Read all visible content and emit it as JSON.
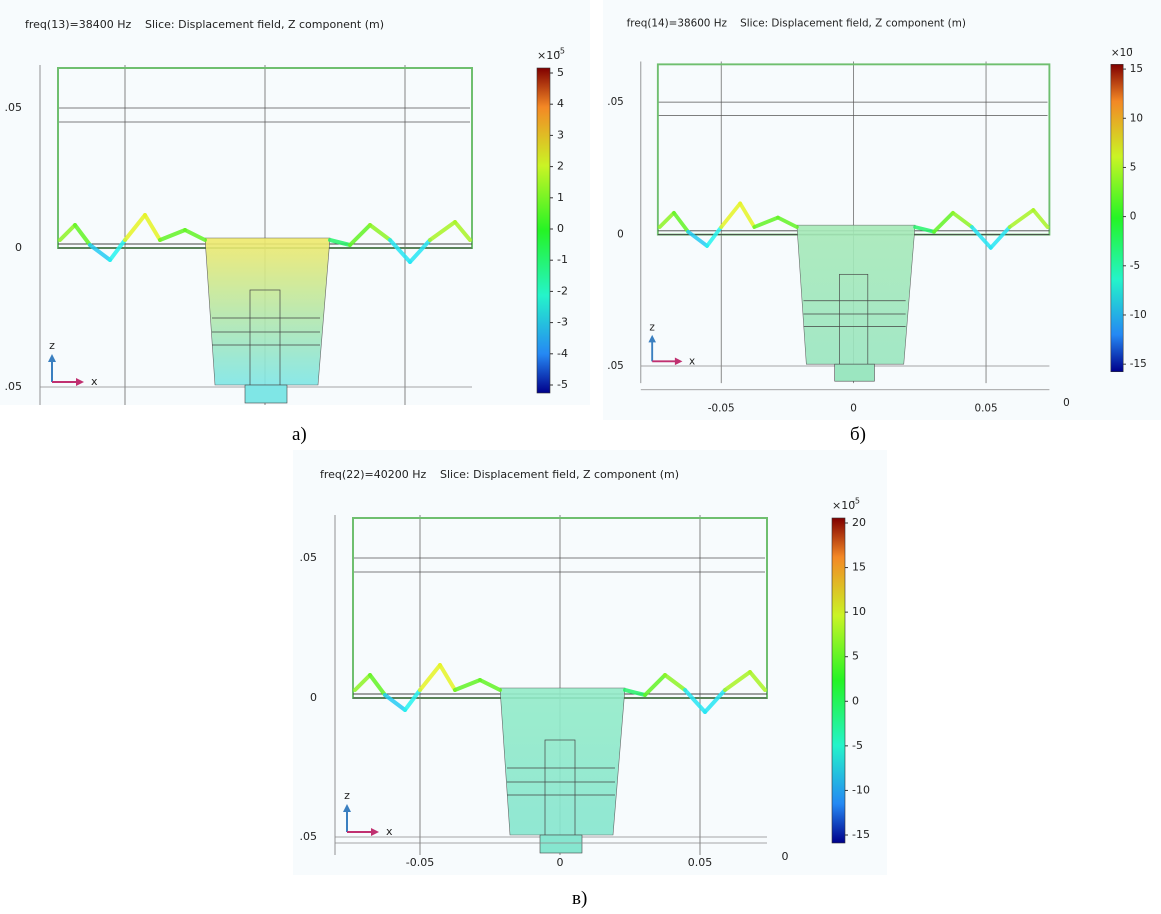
{
  "panels": [
    {
      "caption": "а)",
      "title": "freq(13)=38400 Hz",
      "slice_label": "Slice: Displacement field, Z component (m)",
      "colorbar": {
        "multiplier": "×10",
        "exponent": "-5",
        "ticks": [
          "5",
          "4",
          "3",
          "2",
          "1",
          "0",
          "-1",
          "-2",
          "-3",
          "-4",
          "-5"
        ]
      },
      "y_labels": [
        ".05",
        "0",
        ".05"
      ],
      "axis_labels": [
        "z",
        "x"
      ]
    },
    {
      "caption": "б)",
      "title": "freq(14)=38600 Hz",
      "slice_label": "Slice: Displacement field, Z component (m)",
      "colorbar": {
        "multiplier": "×10",
        "exponent": "-",
        "ticks": [
          "15",
          "10",
          "5",
          "0",
          "-5",
          "-10",
          "-15"
        ]
      },
      "y_labels": [
        ".05",
        "0",
        ".05"
      ],
      "x_labels": [
        "-0.05",
        "0",
        "0.05",
        "0"
      ],
      "axis_labels": [
        "z",
        "x"
      ]
    },
    {
      "caption": "в)",
      "title": "freq(22)=40200 Hz",
      "slice_label": "Slice: Displacement field, Z component (m)",
      "colorbar": {
        "multiplier": "×10",
        "exponent": "-5",
        "ticks": [
          "20",
          "15",
          "10",
          "5",
          "0",
          "-5",
          "-10",
          "-15"
        ]
      },
      "y_labels": [
        ".05",
        "0",
        ".05"
      ],
      "x_labels": [
        "-0.05",
        "0",
        "0.05",
        "0"
      ],
      "axis_labels": [
        "z",
        "x"
      ]
    }
  ]
}
